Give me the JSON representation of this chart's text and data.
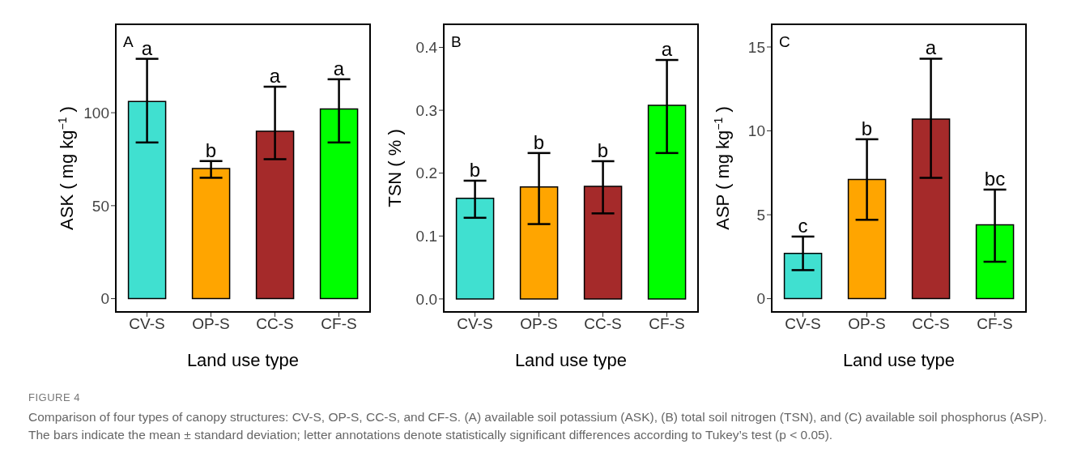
{
  "chart_data": [
    {
      "type": "bar",
      "xlabel": "Land use type",
      "ylabel": "ASK ( mg kg$^{−1}$ )",
      "categories": [
        "CV-S",
        "OP-S",
        "CC-S",
        "CF-S"
      ],
      "values": [
        106,
        70,
        90,
        102
      ],
      "colors": [
        "#40e0d0",
        "#ffa500",
        "#a52a2a",
        "#00ff00"
      ],
      "errors": [
        [
          84,
          129
        ],
        [
          65,
          74
        ],
        [
          75,
          114
        ],
        [
          84,
          118
        ]
      ],
      "ylim": [
        -7.6,
        148
      ],
      "yticks": [
        0,
        50,
        100
      ],
      "grid": false,
      "annotations": [
        "A",
        {
          "text": "a",
          "x": "CV-S",
          "y": 129
        },
        {
          "text": "b",
          "x": "OP-S",
          "y": 74
        },
        {
          "text": "a",
          "x": "CC-S",
          "y": 114
        },
        {
          "text": "a",
          "x": "CF-S",
          "y": 118
        },
        "FIGURE 4",
        "Comparison of four types of canopy structures: CV-S, OP-S, CC-S, and CF-S. (A) available soil potassium (ASK), (B) total soil nitrogen (TSN), and (C) available soil phosphorus (ASP). The bars indicate the mean ± standard deviation; letter annotations denote statistically significant differences according to Tukey’s test (p < 0.05)."
      ]
    },
    {
      "type": "bar",
      "xlabel": "Land use type",
      "ylabel": "TSN ( % )",
      "categories": [
        "CV-S",
        "OP-S",
        "CC-S",
        "CF-S"
      ],
      "values": [
        0.16,
        0.178,
        0.179,
        0.308
      ],
      "colors": [
        "#40e0d0",
        "#ffa500",
        "#a52a2a",
        "#00ff00"
      ],
      "errors": [
        [
          0.129,
          0.188
        ],
        [
          0.119,
          0.232
        ],
        [
          0.136,
          0.219
        ],
        [
          0.232,
          0.38
        ]
      ],
      "ylim": [
        -0.022,
        0.438
      ],
      "yticks": [
        {
          "value": 0,
          "label": "0.0"
        },
        0.1,
        0.2,
        0.3,
        0.4
      ],
      "grid": false,
      "annotations": [
        "B",
        {
          "text": "b",
          "x": "CV-S",
          "y": 0.188
        },
        {
          "text": "b",
          "x": "OP-S",
          "y": 0.232
        },
        {
          "text": "b",
          "x": "CC-S",
          "y": 0.219
        },
        {
          "text": "a",
          "x": "CF-S",
          "y": 0.38
        }
      ]
    },
    {
      "type": "bar",
      "xlabel": "Land use type",
      "ylabel": "ASP ( mg kg$^{−1}$ )",
      "categories": [
        "CV-S",
        "OP-S",
        "CC-S",
        "CF-S"
      ],
      "values": [
        2.7,
        7.1,
        10.7,
        4.4
      ],
      "colors": [
        "#40e0d0",
        "#ffa500",
        "#a52a2a",
        "#00ff00"
      ],
      "errors": [
        [
          1.7,
          3.7
        ],
        [
          4.7,
          9.5
        ],
        [
          7.2,
          14.3
        ],
        [
          2.2,
          6.5
        ]
      ],
      "ylim": [
        -0.84,
        16.4
      ],
      "yticks": [
        0,
        5,
        10,
        15
      ],
      "grid": false,
      "annotations": [
        "C",
        {
          "text": "c",
          "x": "CV-S",
          "y": 3.7
        },
        {
          "text": "b",
          "x": "OP-S",
          "y": 9.5
        },
        {
          "text": "a",
          "x": "CC-S",
          "y": 14.3
        },
        {
          "text": "bc",
          "x": "CF-S",
          "y": 6.5
        }
      ]
    }
  ]
}
